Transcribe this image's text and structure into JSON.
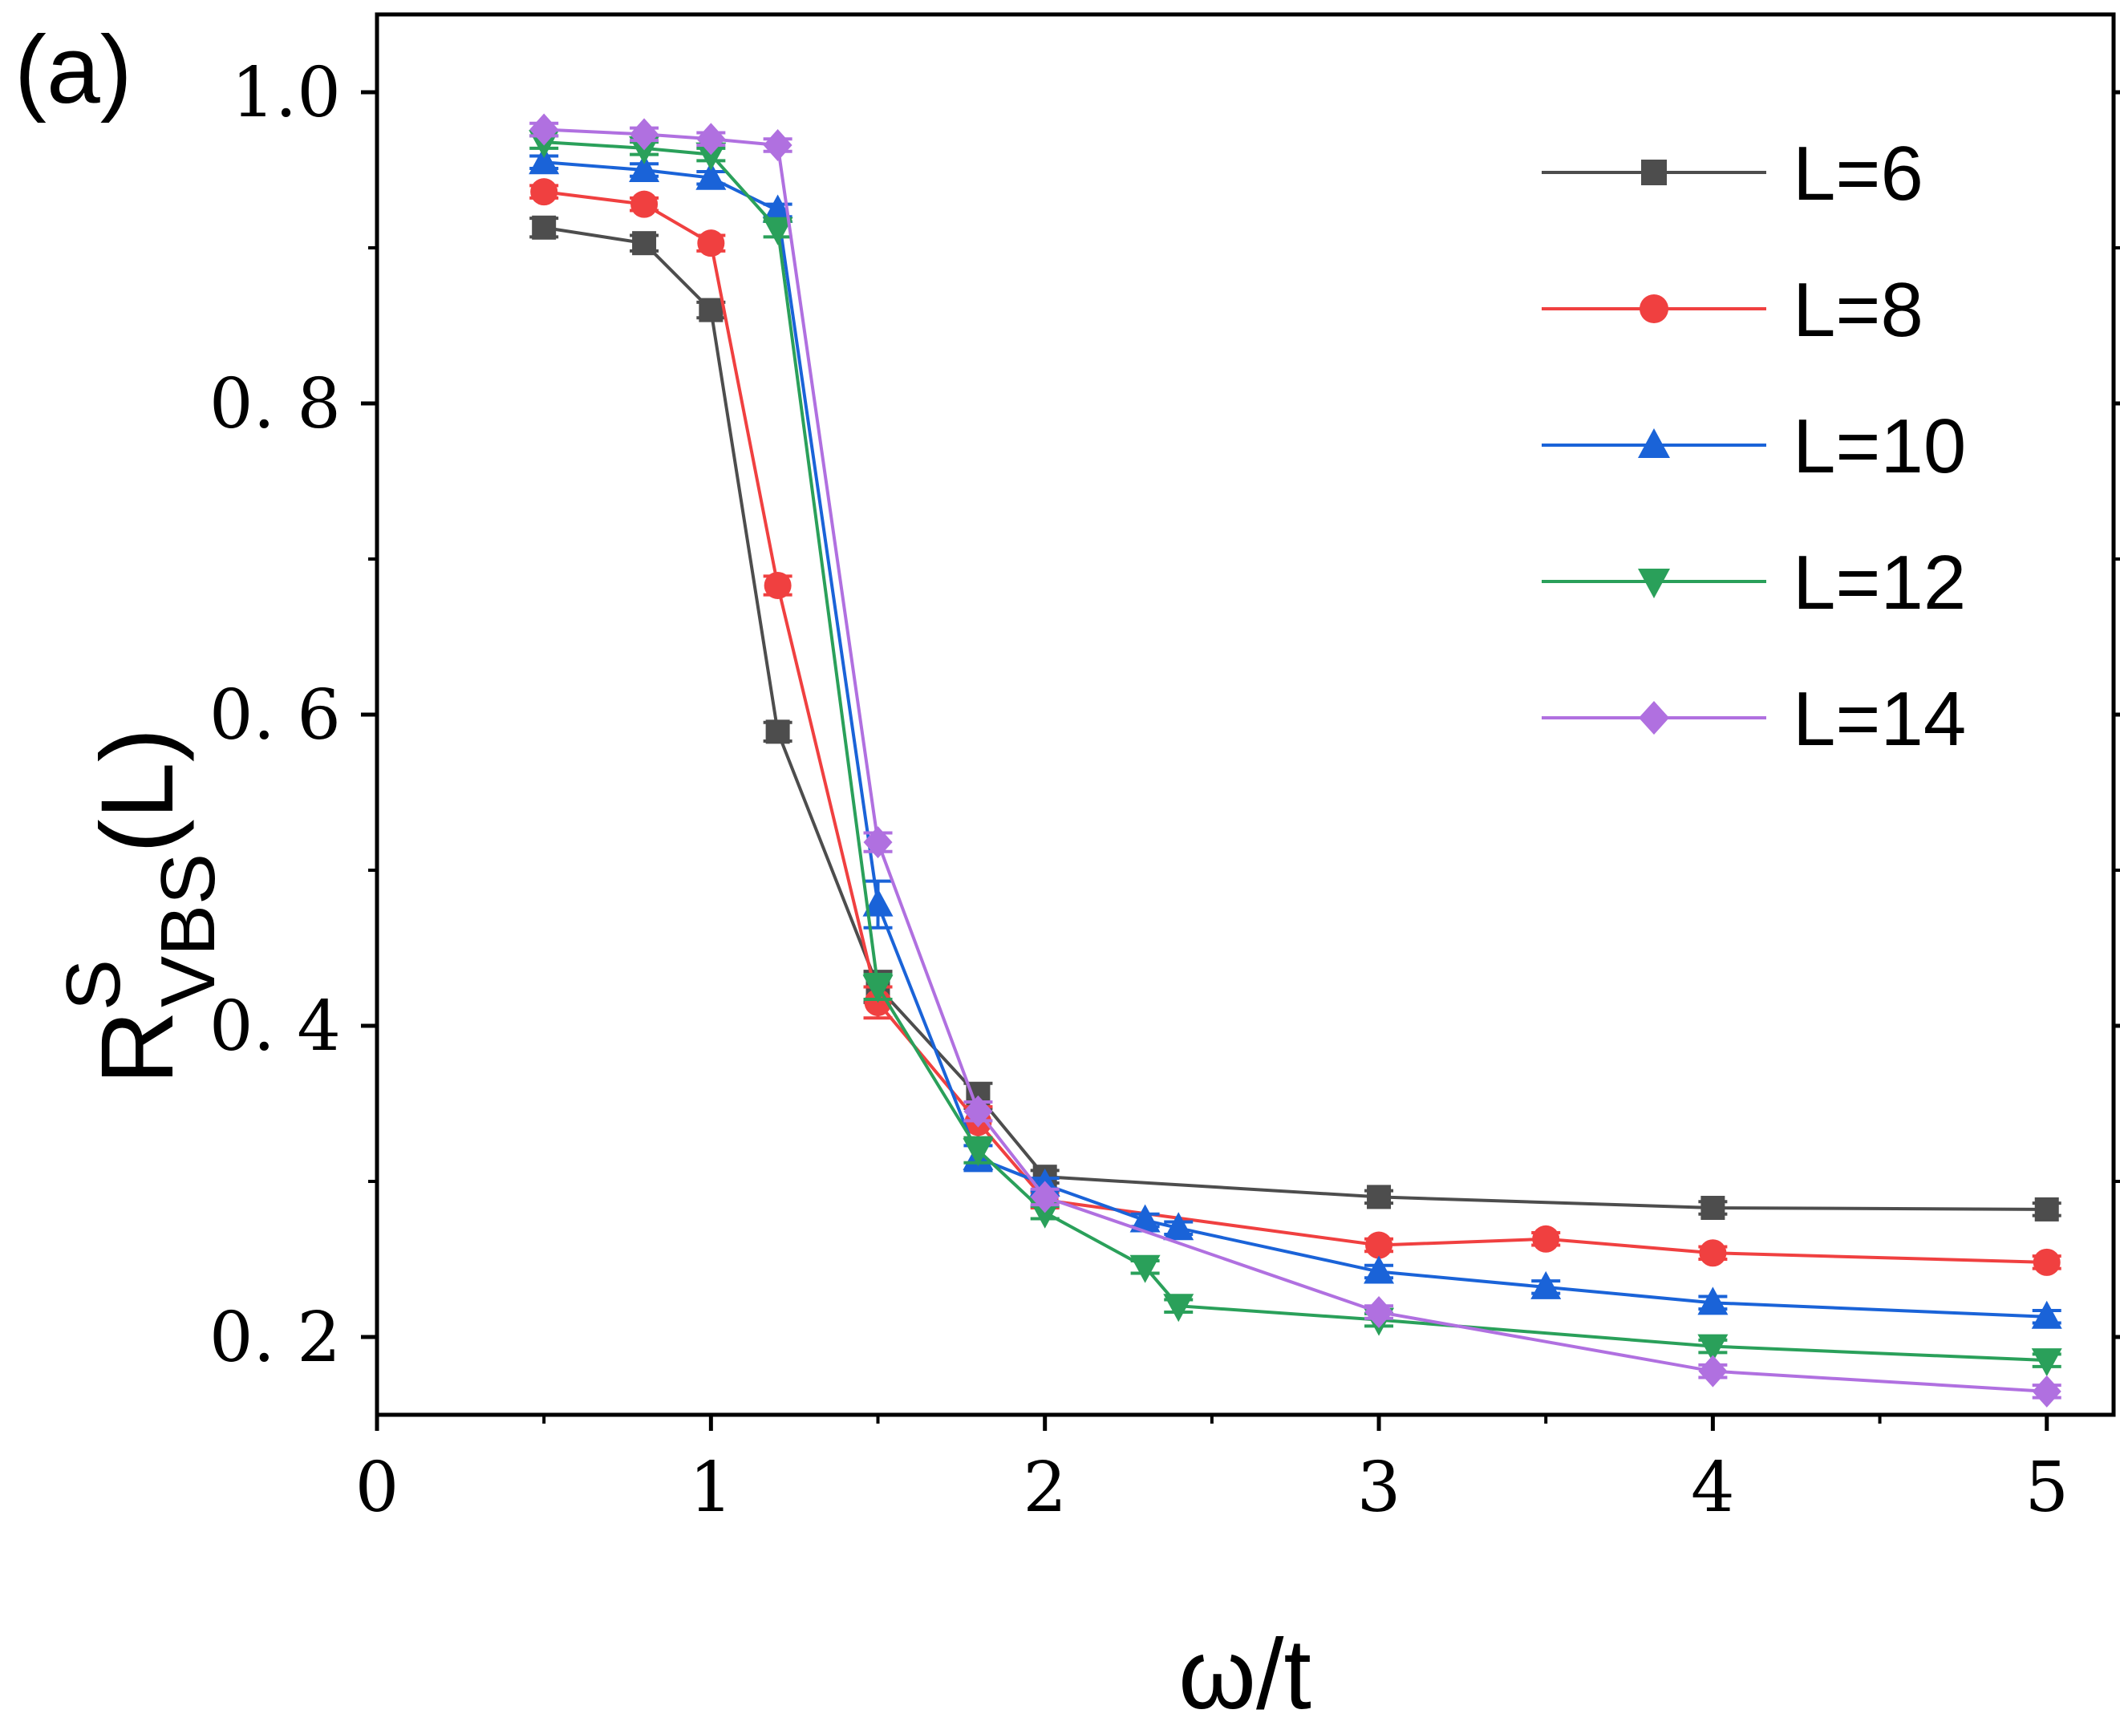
{
  "chart_data": {
    "type": "line",
    "panel_label": "(a)",
    "xlabel": "ω/t",
    "ylabel": {
      "main": "R",
      "superscript": "S",
      "subscript": "VBS",
      "suffix": "(L)"
    },
    "xlim": [
      0,
      5.2
    ],
    "ylim": [
      0.15,
      1.05
    ],
    "xticks": [
      0,
      1,
      2,
      3,
      4,
      5
    ],
    "xtick_labels": [
      "0",
      "1",
      "2",
      "3",
      "4",
      "5"
    ],
    "yticks": [
      0.2,
      0.4,
      0.6,
      0.8,
      1.0
    ],
    "ytick_labels": [
      "0. 2",
      "0. 4",
      "0. 6",
      "0. 8",
      "1.0"
    ],
    "legend_position": "top-right",
    "grid": false,
    "series": [
      {
        "name": "L=6",
        "color": "#4d4d4d",
        "marker": "square",
        "x": [
          0.5,
          0.8,
          1.0,
          1.2,
          1.5,
          1.8,
          2.0,
          3.0,
          4.0,
          5.0
        ],
        "y": [
          0.913,
          0.903,
          0.86,
          0.589,
          0.425,
          0.355,
          0.303,
          0.29,
          0.283,
          0.282
        ],
        "err": [
          0.006,
          0.005,
          0.005,
          0.006,
          0.01,
          0.008,
          0.004,
          0.004,
          0.004,
          0.004
        ]
      },
      {
        "name": "L=8",
        "color": "#f04040",
        "marker": "circle",
        "x": [
          0.5,
          0.8,
          1.0,
          1.2,
          1.5,
          1.8,
          2.0,
          3.0,
          3.5,
          4.0,
          5.0
        ],
        "y": [
          0.936,
          0.928,
          0.903,
          0.683,
          0.415,
          0.338,
          0.288,
          0.259,
          0.263,
          0.254,
          0.248
        ],
        "err": [
          0.004,
          0.004,
          0.005,
          0.006,
          0.01,
          0.01,
          0.005,
          0.004,
          0.004,
          0.004,
          0.004
        ]
      },
      {
        "name": "L=10",
        "color": "#1a63d8",
        "marker": "triangle-up",
        "x": [
          0.5,
          0.8,
          1.0,
          1.2,
          1.5,
          1.8,
          2.0,
          2.3,
          2.4,
          3.0,
          3.5,
          4.0,
          5.0
        ],
        "y": [
          0.955,
          0.95,
          0.945,
          0.924,
          0.478,
          0.315,
          0.298,
          0.275,
          0.27,
          0.242,
          0.232,
          0.222,
          0.213
        ],
        "err": [
          0.004,
          0.004,
          0.004,
          0.004,
          0.015,
          0.008,
          0.004,
          0.004,
          0.004,
          0.004,
          0.004,
          0.004,
          0.004
        ]
      },
      {
        "name": "L=12",
        "color": "#2aa05a",
        "marker": "triangle-down",
        "x": [
          0.5,
          0.8,
          1.0,
          1.2,
          1.5,
          1.8,
          2.0,
          2.3,
          2.4,
          3.0,
          4.0,
          5.0
        ],
        "y": [
          0.968,
          0.964,
          0.96,
          0.912,
          0.425,
          0.32,
          0.28,
          0.245,
          0.22,
          0.211,
          0.194,
          0.185
        ],
        "err": [
          0.004,
          0.004,
          0.004,
          0.005,
          0.008,
          0.008,
          0.004,
          0.004,
          0.004,
          0.004,
          0.004,
          0.004
        ]
      },
      {
        "name": "L=14",
        "color": "#b070e0",
        "marker": "diamond",
        "x": [
          0.5,
          0.8,
          1.0,
          1.2,
          1.5,
          1.8,
          2.0,
          3.0,
          4.0,
          5.0
        ],
        "y": [
          0.976,
          0.973,
          0.97,
          0.966,
          0.518,
          0.345,
          0.29,
          0.216,
          0.178,
          0.165
        ],
        "err": [
          0.004,
          0.004,
          0.004,
          0.004,
          0.006,
          0.006,
          0.005,
          0.004,
          0.004,
          0.004
        ]
      }
    ]
  }
}
